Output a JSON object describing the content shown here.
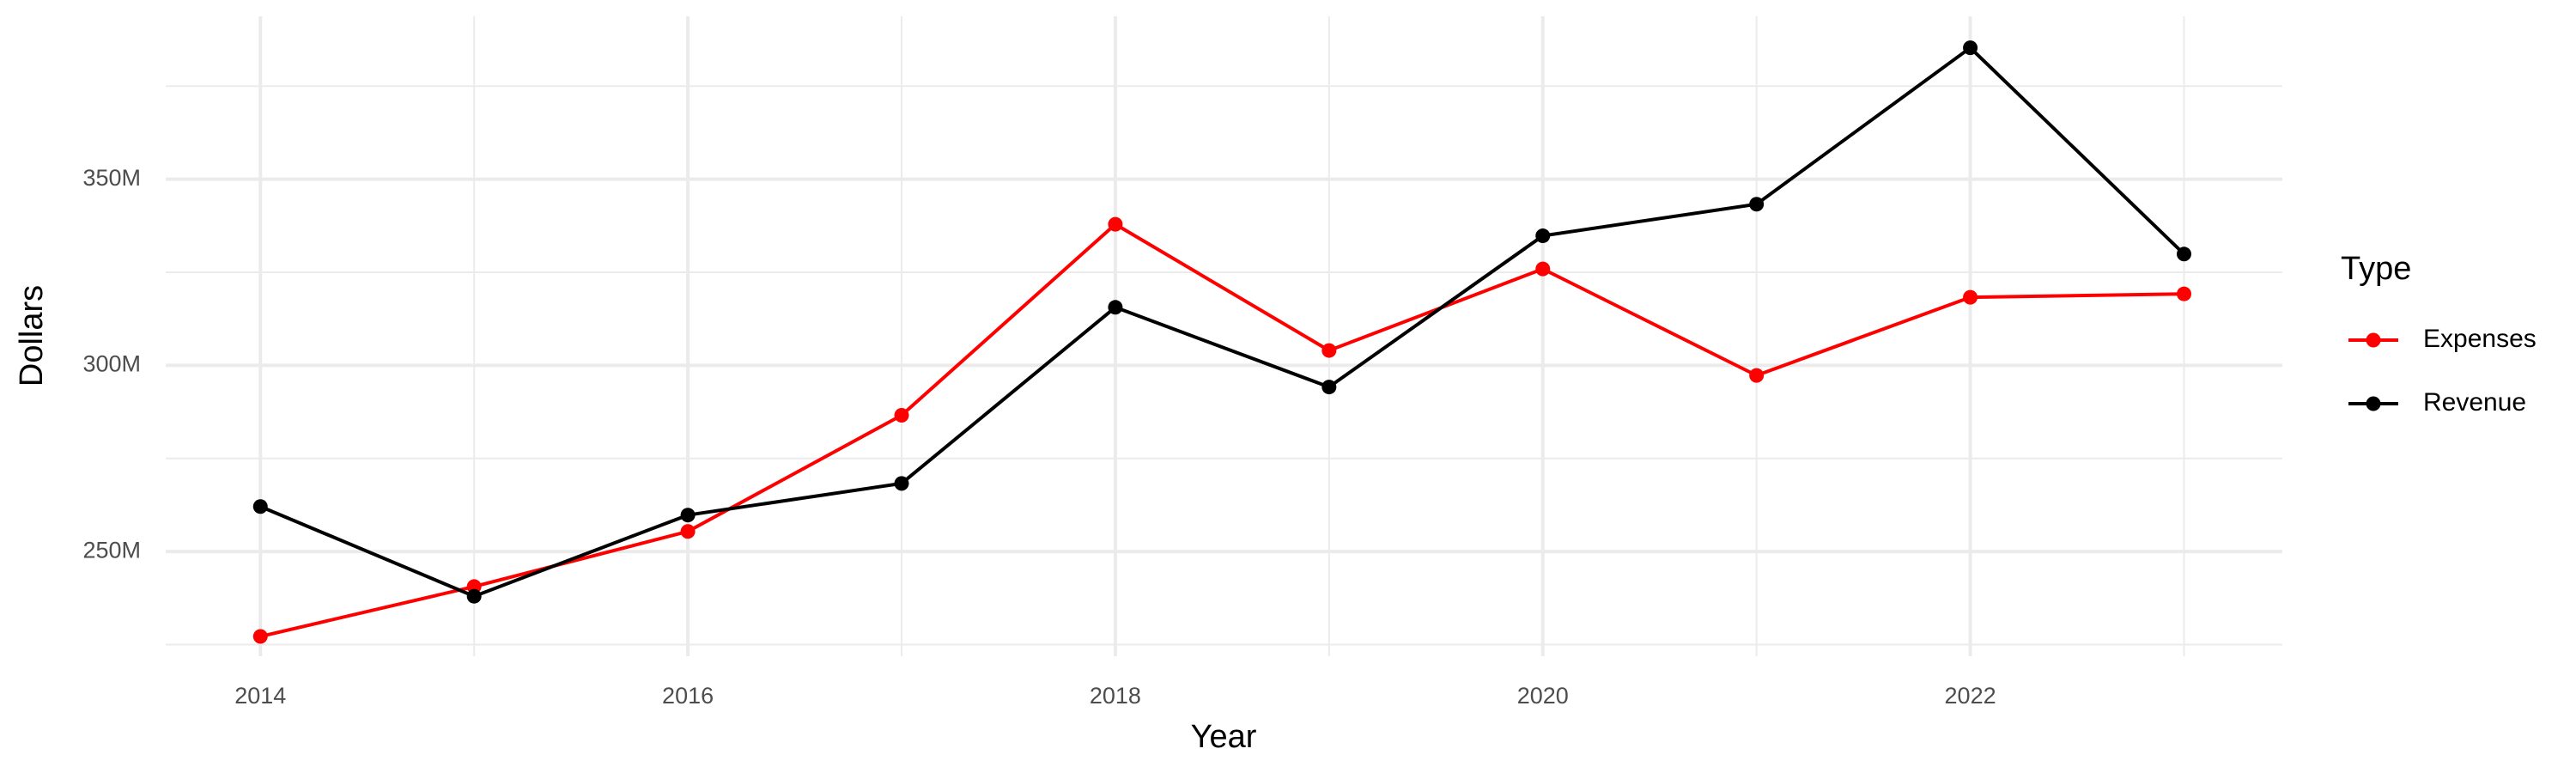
{
  "chart_data": {
    "type": "line",
    "x_label": "Year",
    "y_label": "Dollars",
    "x": [
      2014,
      2015,
      2016,
      2017,
      2018,
      2019,
      2020,
      2021,
      2022,
      2023
    ],
    "series": [
      {
        "name": "Expenses",
        "color": "#ff0000",
        "values": [
          227200000,
          240600000,
          255400000,
          286600000,
          337900000,
          304000000,
          325900000,
          297300000,
          318300000,
          319200000
        ]
      },
      {
        "name": "Revenue",
        "color": "#000000",
        "values": [
          262100000,
          238000000,
          259800000,
          268300000,
          315600000,
          294200000,
          334800000,
          343300000,
          385300000,
          329900000
        ]
      }
    ],
    "xlim": [
      2013.557,
      2023.46
    ],
    "ylim": [
      221900000,
      393750000
    ],
    "xticks": [
      2014,
      2016,
      2018,
      2020,
      2022
    ],
    "yticks": [
      {
        "value": 250000000,
        "label": "250M"
      },
      {
        "value": 300000000,
        "label": "300M"
      },
      {
        "value": 350000000,
        "label": "350M"
      }
    ],
    "grid": true,
    "legend_title": "Type",
    "legend_position": "right"
  }
}
